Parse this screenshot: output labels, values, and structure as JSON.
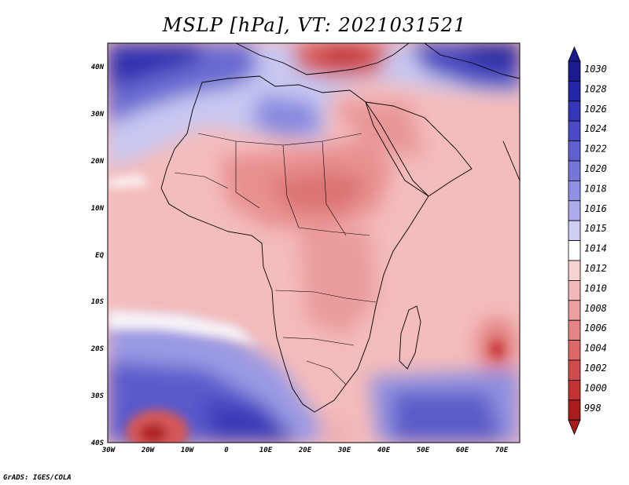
{
  "title": "MSLP [hPa], VT: 2021031521",
  "credit": "GrADS: IGES/COLA",
  "axes": {
    "lat_labels": [
      "40N",
      "30N",
      "20N",
      "10N",
      "EQ",
      "10S",
      "20S",
      "30S",
      "40S"
    ],
    "lon_labels": [
      "30W",
      "20W",
      "10W",
      "0",
      "10E",
      "20E",
      "30E",
      "40E",
      "50E",
      "60E",
      "70E"
    ]
  },
  "colorbar": {
    "labels": [
      "1030",
      "1028",
      "1026",
      "1024",
      "1022",
      "1020",
      "1018",
      "1016",
      "1015",
      "1014",
      "1012",
      "1010",
      "1008",
      "1006",
      "1004",
      "1002",
      "1000",
      "998"
    ],
    "colors": [
      "#1b1b8f",
      "#2424a8",
      "#3636bb",
      "#4a4ac6",
      "#5f5fcf",
      "#7676d8",
      "#9090e2",
      "#adadec",
      "#cfcff6",
      "#ffffff",
      "#f7d2d2",
      "#f3b8b8",
      "#eda0a0",
      "#e48484",
      "#dc6868",
      "#d04c4c",
      "#c23232",
      "#a81c1c"
    ]
  },
  "colors": {
    "ocean_base": "#f4bcbc",
    "border": "#000000"
  }
}
